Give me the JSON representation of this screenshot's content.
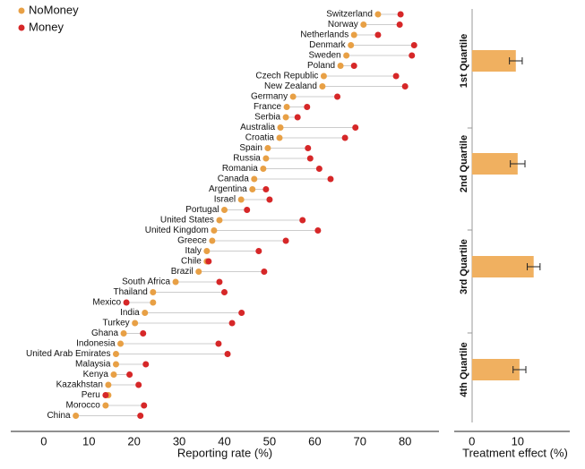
{
  "chart_data": [
    {
      "type": "dumbbell",
      "categories": [
        "Switzerland",
        "Norway",
        "Netherlands",
        "Denmark",
        "Sweden",
        "Poland",
        "Czech Republic",
        "New Zealand",
        "Germany",
        "France",
        "Serbia",
        "Australia",
        "Croatia",
        "Spain",
        "Russia",
        "Romania",
        "Canada",
        "Argentina",
        "Israel",
        "Portugal",
        "United States",
        "United Kingdom",
        "Greece",
        "Italy",
        "Chile",
        "Brazil",
        "South Africa",
        "Thailand",
        "Mexico",
        "India",
        "Turkey",
        "Ghana",
        "Indonesia",
        "United Arab Emirates",
        "Malaysia",
        "Kenya",
        "Kazakhstan",
        "Peru",
        "Morocco",
        "China"
      ],
      "series": [
        {
          "name": "NoMoney",
          "color": "#e8a045",
          "values": [
            74,
            70.8,
            68.7,
            68,
            67,
            65.7,
            62,
            61.7,
            55.2,
            53.8,
            53.6,
            52.4,
            52.2,
            49.6,
            49.2,
            48.6,
            46.6,
            46.2,
            43.7,
            40,
            38.9,
            37.7,
            37.3,
            36.1,
            36.1,
            34.3,
            29.2,
            24.2,
            24.2,
            22.4,
            20.2,
            17.7,
            17,
            16,
            16,
            15.5,
            14.3,
            14.3,
            13.7,
            7.1
          ]
        },
        {
          "name": "Money",
          "color": "#d62728",
          "values": [
            79,
            78.8,
            74,
            82,
            81.5,
            68.7,
            78,
            80,
            65,
            58.3,
            56.2,
            69,
            66.7,
            58.5,
            59,
            61,
            63.5,
            49.2,
            50,
            45,
            57.3,
            60.7,
            53.6,
            47.6,
            36.5,
            48.8,
            38.9,
            40,
            18.3,
            43.8,
            41.7,
            22,
            38.7,
            40.7,
            22.6,
            19,
            21,
            13.7,
            22.2,
            21.4
          ]
        }
      ],
      "xlim": [
        -7.3,
        87.5
      ],
      "xticks": [
        0,
        10,
        20,
        30,
        40,
        50,
        60,
        70,
        80
      ],
      "x_label": "Reporting rate (%)"
    },
    {
      "type": "bar",
      "categories": [
        "1st Quartile",
        "2nd Quartile",
        "3rd Quartile",
        "4th Quartile"
      ],
      "values": [
        9.6,
        10,
        13.5,
        10.4
      ],
      "errors": [
        1.4,
        1.6,
        1.4,
        1.4
      ],
      "color": "#f0b060",
      "xlim": [
        -2.9,
        21.4
      ],
      "xticks": [
        0,
        10
      ],
      "x_label": "Treatment effect (%)"
    }
  ]
}
